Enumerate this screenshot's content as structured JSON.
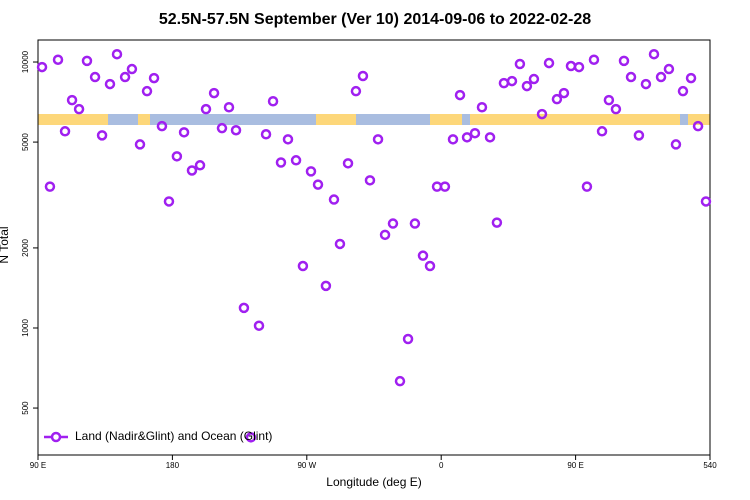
{
  "chart_data": {
    "type": "scatter",
    "title": "52.5N-57.5N September (Ver 10)   2014-09-06 to 2022-02-28",
    "x_label": "Longitude (deg E)",
    "y_label": "N Total",
    "series": [
      {
        "name": "Land (Nadir&Glint) and Ocean (Glint)",
        "color": "#a020f0",
        "x": [
          92.7,
          98.0,
          103.4,
          108.1,
          112.8,
          117.5,
          122.8,
          128.2,
          132.9,
          138.2,
          142.9,
          148.3,
          152.9,
          158.3,
          163.0,
          167.7,
          173.0,
          177.7,
          183.0,
          187.8,
          193.1,
          198.5,
          202.5,
          207.9,
          213.2,
          217.9,
          222.6,
          227.9,
          232.6,
          238.0,
          242.7,
          247.4,
          252.7,
          257.4,
          262.8,
          267.4,
          272.8,
          277.5,
          282.8,
          288.2,
          292.2,
          297.6,
          302.9,
          307.6,
          312.3,
          317.7,
          322.4,
          327.7,
          332.4,
          337.8,
          342.4,
          347.8,
          352.5,
          357.2,
          362.5,
          367.9,
          372.6,
          377.3,
          382.6,
          387.3,
          392.7,
          397.3,
          402.0,
          407.4,
          412.7,
          417.4,
          422.1,
          427.5,
          432.2,
          437.5,
          442.2,
          446.9,
          452.3,
          457.6,
          462.3,
          467.7,
          472.3,
          477.0,
          482.4,
          487.1,
          492.4,
          497.1,
          502.5,
          507.2,
          512.5,
          517.2,
          521.9,
          527.3,
          532.0,
          537.3
        ],
        "values": [
          9570,
          3400,
          10200,
          5490,
          7190,
          6650,
          10100,
          8780,
          5300,
          8260,
          10700,
          8780,
          9410,
          4900,
          7770,
          8700,
          5740,
          2990,
          4420,
          5440,
          3910,
          4090,
          6650,
          7640,
          5640,
          6760,
          5540,
          1190,
          388,
          1020,
          5350,
          7120,
          4190,
          5120,
          4270,
          1710,
          3880,
          3460,
          1440,
          3040,
          2070,
          4160,
          7770,
          8860,
          3590,
          5120,
          2240,
          2470,
          631,
          909,
          2470,
          1870,
          1710,
          3400,
          3400,
          5120,
          7510,
          5210,
          5400,
          6760,
          5210,
          2490,
          8330,
          8480,
          9830,
          8120,
          8630,
          6370,
          9910,
          7250,
          7640,
          9660,
          9570,
          3400,
          10200,
          5490,
          7190,
          6650,
          10100,
          8780,
          5300,
          8260,
          10700,
          8780,
          9410,
          4900,
          7770,
          8700,
          5740,
          2990
        ]
      }
    ],
    "xlim": [
      90,
      540
    ],
    "xticks": [
      {
        "value": 90,
        "label": "90 E"
      },
      180,
      {
        "value": 270,
        "label": "90 W"
      },
      {
        "value": 360,
        "label": "0"
      },
      {
        "value": 450,
        "label": "90 E"
      },
      540
    ],
    "ylim": [
      333,
      12100
    ],
    "yticks": [
      500,
      1000,
      2000,
      5000,
      10000
    ],
    "log_y": true,
    "grid": false,
    "legend": "lower left"
  }
}
